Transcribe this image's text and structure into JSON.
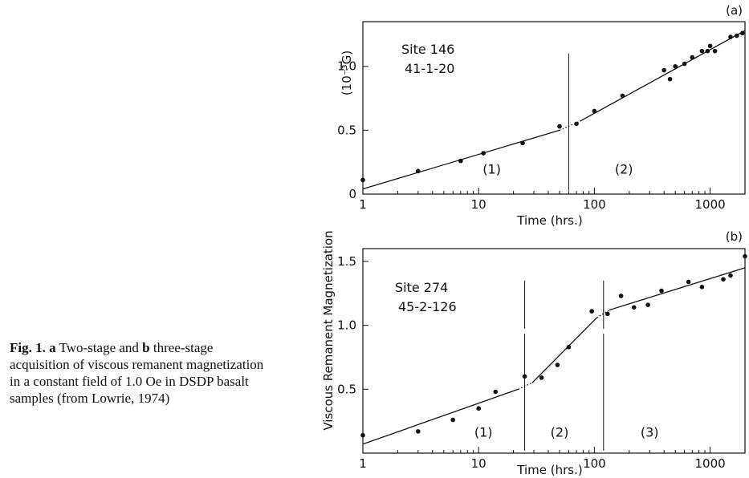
{
  "caption": {
    "fig_label": "Fig. 1.",
    "a_label": "a",
    "text_after_a": " Two-stage and ",
    "b_label": "b",
    "text_after_b": " three-stage acquisition of viscous remanent magnetization in a constant field of 1.0 Oe in DSDP basalt samples (from Lowrie, 1974)"
  },
  "shared_ylabel": "Viscous Remanent Magnetization",
  "colors": {
    "ink": "#111111",
    "background": "#ffffff"
  },
  "chart_data": [
    {
      "type": "scatter",
      "panel_label": "(a)",
      "annotation": [
        "Site 146",
        "41-1-20"
      ],
      "xlabel": "Time  (hrs.)",
      "ylabel": "(10⁻³G)",
      "xscale": "log",
      "xlim": [
        1,
        2000
      ],
      "ylim": [
        0,
        1.35
      ],
      "xticks": [
        1,
        10,
        100,
        1000
      ],
      "xtick_labels": [
        "1",
        "10",
        "100",
        "1000"
      ],
      "yticks": [
        0,
        0.5,
        1.0
      ],
      "ytick_labels": [
        "0",
        "0.5",
        "1.0"
      ],
      "grid": false,
      "stage_boundaries": [
        60
      ],
      "stage_labels": [
        {
          "text": "(1)",
          "x": 13,
          "y": 0.16
        },
        {
          "text": "(2)",
          "x": 180,
          "y": 0.16
        }
      ],
      "points": [
        [
          1,
          0.11
        ],
        [
          3,
          0.18
        ],
        [
          7,
          0.26
        ],
        [
          11,
          0.32
        ],
        [
          24,
          0.4
        ],
        [
          50,
          0.53
        ],
        [
          70,
          0.55
        ],
        [
          100,
          0.65
        ],
        [
          175,
          0.77
        ],
        [
          400,
          0.97
        ],
        [
          450,
          0.9
        ],
        [
          500,
          1.0
        ],
        [
          600,
          1.02
        ],
        [
          700,
          1.07
        ],
        [
          850,
          1.12
        ],
        [
          950,
          1.12
        ],
        [
          1000,
          1.16
        ],
        [
          1100,
          1.12
        ],
        [
          1500,
          1.23
        ],
        [
          1700,
          1.24
        ],
        [
          1900,
          1.26
        ]
      ],
      "fit_lines": [
        {
          "style": "solid",
          "points": [
            [
              1,
              0.04
            ],
            [
              50,
              0.5
            ]
          ]
        },
        {
          "style": "dotted",
          "points": [
            [
              50,
              0.5
            ],
            [
              75,
              0.57
            ]
          ]
        },
        {
          "style": "solid",
          "points": [
            [
              75,
              0.57
            ],
            [
              2000,
              1.28
            ]
          ]
        }
      ]
    },
    {
      "type": "scatter",
      "panel_label": "(b)",
      "annotation": [
        "Site 274",
        "45-2-126"
      ],
      "xlabel": "Time  (hrs.)",
      "ylabel": "",
      "xscale": "log",
      "xlim": [
        1,
        2000
      ],
      "ylim": [
        0,
        1.6
      ],
      "xticks": [
        1,
        10,
        100,
        1000
      ],
      "xtick_labels": [
        "1",
        "10",
        "100",
        "1000"
      ],
      "yticks": [
        0.5,
        1.0,
        1.5
      ],
      "ytick_labels": [
        "0.5",
        "1.0",
        "1.5"
      ],
      "grid": false,
      "stage_boundaries": [
        25,
        120
      ],
      "stage_labels": [
        {
          "text": "(1)",
          "x": 11,
          "y": 0.13
        },
        {
          "text": "(2)",
          "x": 50,
          "y": 0.13
        },
        {
          "text": "(3)",
          "x": 300,
          "y": 0.13
        }
      ],
      "points": [
        [
          1,
          0.14
        ],
        [
          3,
          0.17
        ],
        [
          6,
          0.26
        ],
        [
          10,
          0.35
        ],
        [
          14,
          0.48
        ],
        [
          25,
          0.6
        ],
        [
          35,
          0.59
        ],
        [
          48,
          0.69
        ],
        [
          60,
          0.83
        ],
        [
          95,
          1.11
        ],
        [
          130,
          1.09
        ],
        [
          170,
          1.23
        ],
        [
          220,
          1.14
        ],
        [
          290,
          1.16
        ],
        [
          380,
          1.27
        ],
        [
          650,
          1.34
        ],
        [
          850,
          1.3
        ],
        [
          1300,
          1.36
        ],
        [
          1500,
          1.39
        ],
        [
          2000,
          1.54
        ]
      ],
      "fit_lines": [
        {
          "style": "solid",
          "points": [
            [
              1,
              0.07
            ],
            [
              22,
              0.5
            ]
          ]
        },
        {
          "style": "dotted",
          "points": [
            [
              22,
              0.5
            ],
            [
              29,
              0.55
            ]
          ]
        },
        {
          "style": "solid",
          "points": [
            [
              29,
              0.55
            ],
            [
              105,
              1.06
            ]
          ]
        },
        {
          "style": "dotted",
          "points": [
            [
              105,
              1.06
            ],
            [
              135,
              1.12
            ]
          ]
        },
        {
          "style": "solid",
          "points": [
            [
              135,
              1.12
            ],
            [
              2000,
              1.45
            ]
          ]
        }
      ]
    }
  ]
}
